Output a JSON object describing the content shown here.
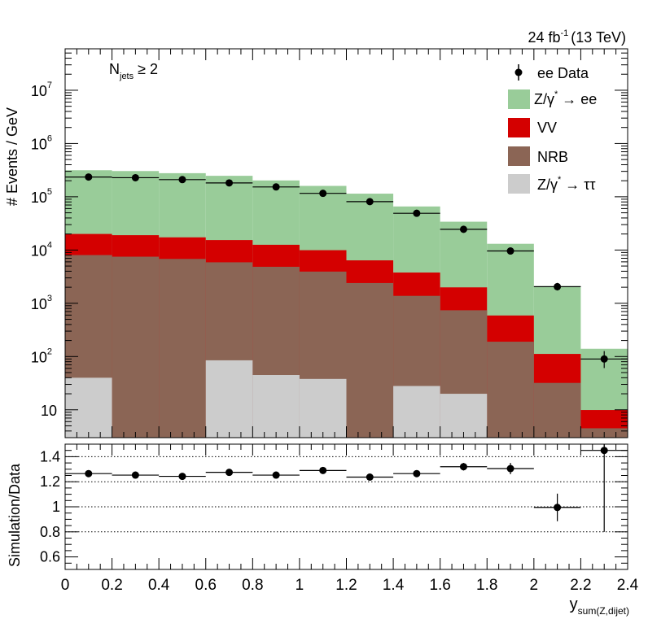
{
  "chart_data": [
    {
      "type": "bar",
      "stacked": true,
      "ylabel": "# Events / GeV",
      "yscale": "log",
      "ylim": [
        3,
        60000000
      ],
      "xlim": [
        0,
        2.4
      ],
      "lumi_label": "24 fb",
      "lumi_exp": "-1",
      "energy_label": "(13 TeV)",
      "selection_main": "N",
      "selection_sub": "jets",
      "selection_rest": " ≥ 2",
      "y_tick_labels": [
        {
          "value": 10,
          "label": "10",
          "exp": ""
        },
        {
          "value": 100,
          "label": "10",
          "exp": "2"
        },
        {
          "value": 1000,
          "label": "10",
          "exp": "3"
        },
        {
          "value": 10000,
          "label": "10",
          "exp": "4"
        },
        {
          "value": 100000,
          "label": "10",
          "exp": "5"
        },
        {
          "value": 1000000,
          "label": "10",
          "exp": "6"
        },
        {
          "value": 10000000,
          "label": "10",
          "exp": "7"
        }
      ],
      "bin_edges": [
        0,
        0.2,
        0.4,
        0.6,
        0.8,
        1.0,
        1.2,
        1.4,
        1.6,
        1.8,
        2.0,
        2.2,
        2.4
      ],
      "series": [
        {
          "name": "Z/γ* → ττ",
          "color": "#cccccc",
          "legend_main": "Z/γ",
          "legend_sup": "*",
          "legend_rest": " → ττ",
          "values": [
            40,
            0,
            0,
            85,
            45,
            38,
            0,
            28,
            20,
            0,
            0,
            0
          ]
        },
        {
          "name": "NRB",
          "color": "#8b6555",
          "legend_main": "NRB",
          "legend_sup": "",
          "legend_rest": "",
          "values": [
            8000,
            7500,
            6800,
            5800,
            4800,
            3900,
            2400,
            1350,
            720,
            190,
            32,
            4.5
          ]
        },
        {
          "name": "VV",
          "color": "#d40000",
          "legend_main": "VV",
          "legend_sup": "",
          "legend_rest": "",
          "values": [
            12000,
            11500,
            10500,
            9500,
            7700,
            6000,
            4000,
            2400,
            1250,
            400,
            80,
            5.4
          ]
        },
        {
          "name": "Z/γ* → ee",
          "color": "#99cc99",
          "legend_main": "Z/γ",
          "legend_sup": "*",
          "legend_rest": " → ee",
          "values": [
            295000,
            285000,
            260000,
            232000,
            190000,
            150000,
            108000,
            62000,
            32000,
            12500,
            2000,
            130
          ]
        }
      ],
      "data_series": {
        "name": "ee Data",
        "legend_main": "ee Data",
        "x": [
          0.1,
          0.3,
          0.5,
          0.7,
          0.9,
          1.1,
          1.3,
          1.5,
          1.7,
          1.9,
          2.1,
          2.3
        ],
        "y": [
          235000,
          228000,
          210000,
          182000,
          153000,
          116000,
          81000,
          49000,
          24500,
          9600,
          2050,
          90
        ],
        "yerr": [
          480,
          470,
          450,
          420,
          390,
          340,
          280,
          220,
          160,
          100,
          45,
          20
        ]
      }
    },
    {
      "type": "scatter",
      "title": "",
      "ylabel": "Simulation/Data",
      "xlabel_main": "y",
      "xlabel_sub": "sum(Z,dijet)",
      "xlim": [
        0,
        2.4
      ],
      "ylim": [
        0.5,
        1.5
      ],
      "x_ticks": [
        0,
        0.2,
        0.4,
        0.6,
        0.8,
        1,
        1.2,
        1.4,
        1.6,
        1.8,
        2,
        2.2,
        2.4
      ],
      "x_tick_labels": [
        "0",
        "0.2",
        "0.4",
        "0.6",
        "0.8",
        "1",
        "1.2",
        "1.4",
        "1.6",
        "1.8",
        "2",
        "2.2",
        "2.4"
      ],
      "y_ticks": [
        0.6,
        0.8,
        1,
        1.2,
        1.4
      ],
      "y_tick_labels": [
        "0.6",
        "0.8",
        "1",
        "1.2",
        "1.4"
      ],
      "gridlines": [
        0.8,
        1.0,
        1.2,
        1.4
      ],
      "x": [
        0.1,
        0.3,
        0.5,
        0.7,
        0.9,
        1.1,
        1.3,
        1.5,
        1.7,
        1.9,
        2.1,
        2.3
      ],
      "y": [
        1.265,
        1.253,
        1.243,
        1.275,
        1.253,
        1.29,
        1.237,
        1.265,
        1.32,
        1.305,
        0.995,
        1.45
      ],
      "yerr": [
        0.012,
        0.012,
        0.012,
        0.013,
        0.013,
        0.014,
        0.015,
        0.018,
        0.03,
        0.045,
        0.11,
        0.65
      ]
    }
  ]
}
